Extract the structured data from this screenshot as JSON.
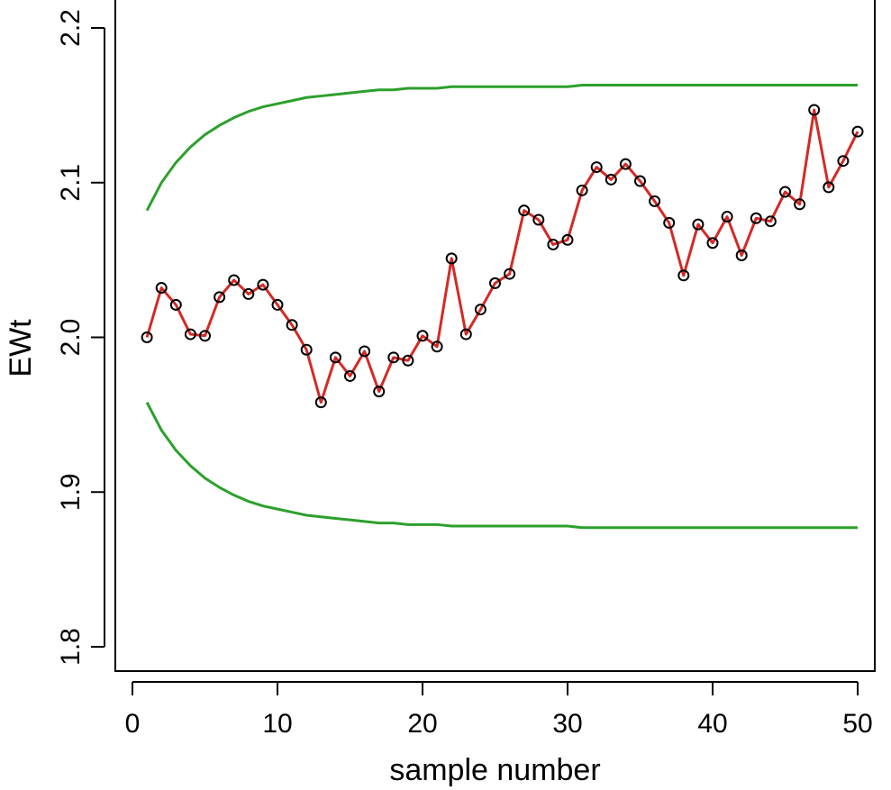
{
  "chart_data": {
    "type": "line",
    "title": "",
    "xlabel": "sample number",
    "ylabel": "EWt",
    "xlim": [
      0,
      50
    ],
    "ylim": [
      1.8,
      2.2
    ],
    "x_ticks": [
      0,
      10,
      20,
      30,
      40,
      50
    ],
    "y_ticks": [
      1.8,
      1.9,
      2.0,
      2.1,
      2.2
    ],
    "y_tick_labels": [
      "1.8",
      "1.9",
      "2.0",
      "2.1",
      "2.2"
    ],
    "colors": {
      "series": "#d42a26",
      "points": "#000000",
      "limits": "#2ca02c",
      "axis": "#000000"
    },
    "series": [
      {
        "name": "EWt",
        "x": [
          1,
          2,
          3,
          4,
          5,
          6,
          7,
          8,
          9,
          10,
          11,
          12,
          13,
          14,
          15,
          16,
          17,
          18,
          19,
          20,
          21,
          22,
          23,
          24,
          25,
          26,
          27,
          28,
          29,
          30,
          31,
          32,
          33,
          34,
          35,
          36,
          37,
          38,
          39,
          40,
          41,
          42,
          43,
          44,
          45,
          46,
          47,
          48,
          49,
          50
        ],
        "values": [
          2.0,
          2.032,
          2.021,
          2.002,
          2.001,
          2.026,
          2.037,
          2.028,
          2.034,
          2.021,
          2.008,
          1.992,
          1.958,
          1.987,
          1.975,
          1.991,
          1.965,
          1.987,
          1.985,
          2.001,
          1.994,
          2.051,
          2.002,
          2.018,
          2.035,
          2.041,
          2.082,
          2.076,
          2.06,
          2.063,
          2.095,
          2.11,
          2.102,
          2.112,
          2.101,
          2.088,
          2.074,
          2.04,
          2.073,
          2.061,
          2.078,
          2.053,
          2.077,
          2.075,
          2.094,
          2.086,
          2.147,
          2.097,
          2.114,
          2.133
        ]
      }
    ],
    "limits": {
      "upper": [
        2.082,
        2.1,
        2.113,
        2.123,
        2.131,
        2.137,
        2.142,
        2.146,
        2.149,
        2.151,
        2.153,
        2.155,
        2.156,
        2.157,
        2.158,
        2.159,
        2.16,
        2.16,
        2.161,
        2.161,
        2.161,
        2.162,
        2.162,
        2.162,
        2.162,
        2.162,
        2.162,
        2.162,
        2.162,
        2.162,
        2.163,
        2.163,
        2.163,
        2.163,
        2.163,
        2.163,
        2.163,
        2.163,
        2.163,
        2.163,
        2.163,
        2.163,
        2.163,
        2.163,
        2.163,
        2.163,
        2.163,
        2.163,
        2.163,
        2.163
      ],
      "lower": [
        1.958,
        1.94,
        1.927,
        1.917,
        1.909,
        1.903,
        1.898,
        1.894,
        1.891,
        1.889,
        1.887,
        1.885,
        1.884,
        1.883,
        1.882,
        1.881,
        1.88,
        1.88,
        1.879,
        1.879,
        1.879,
        1.878,
        1.878,
        1.878,
        1.878,
        1.878,
        1.878,
        1.878,
        1.878,
        1.878,
        1.877,
        1.877,
        1.877,
        1.877,
        1.877,
        1.877,
        1.877,
        1.877,
        1.877,
        1.877,
        1.877,
        1.877,
        1.877,
        1.877,
        1.877,
        1.877,
        1.877,
        1.877,
        1.877,
        1.877
      ]
    }
  }
}
